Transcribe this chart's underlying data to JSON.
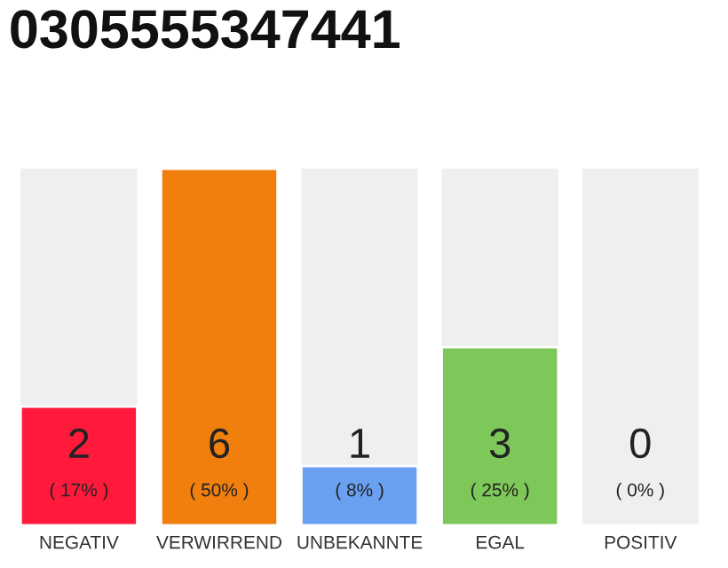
{
  "chart_data": {
    "type": "bar",
    "title": "0305555347441",
    "categories": [
      "NEGATIV",
      "VERWIRREND",
      "UNBEKANNTE",
      "EGAL",
      "POSITIV"
    ],
    "values": [
      2,
      6,
      1,
      3,
      0
    ],
    "colors": [
      "#ff1a3c",
      "#f07f0e",
      "#6aa0f0",
      "#7ec85a",
      null
    ],
    "data_labels": true,
    "ylim": [
      0,
      6
    ],
    "grid": false,
    "legend": false,
    "annotations": [
      "( 17% )",
      "( 50% )",
      "( 8% )",
      "( 25% )",
      "( 0% )"
    ]
  }
}
